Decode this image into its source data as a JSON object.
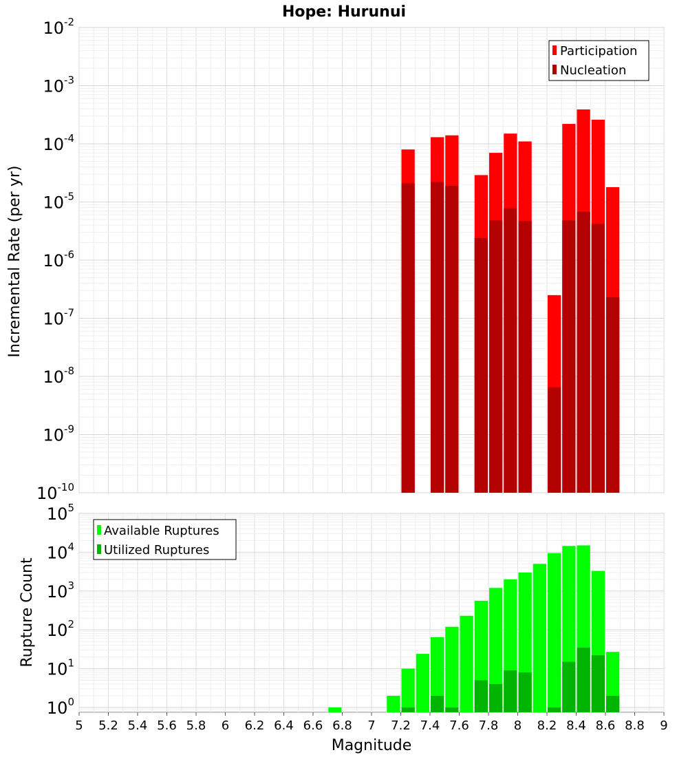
{
  "chart_data": [
    {
      "type": "bar",
      "title": "Hope: Hurunui",
      "ylabel": "Incremental Rate (per yr)",
      "yscale": "log",
      "ylim": [
        1e-10,
        0.01
      ],
      "xlim": [
        5,
        9
      ],
      "legend_position": "top-right",
      "grid": true,
      "series": [
        {
          "name": "Participation",
          "color": "#ff0000",
          "x": [
            7.25,
            7.45,
            7.55,
            7.75,
            7.85,
            7.95,
            8.05,
            8.25,
            8.35,
            8.45,
            8.55,
            8.65
          ],
          "values": [
            8e-05,
            0.00013,
            0.00014,
            2.9e-05,
            7e-05,
            0.00015,
            0.00011,
            2.5e-07,
            0.00022,
            0.00039,
            0.00026,
            1.8e-05
          ]
        },
        {
          "name": "Nucleation",
          "color": "#b30000",
          "x": [
            7.25,
            7.45,
            7.55,
            7.75,
            7.85,
            7.95,
            8.05,
            8.25,
            8.35,
            8.45,
            8.55,
            8.65
          ],
          "values": [
            2.1e-05,
            2.2e-05,
            1.9e-05,
            2.4e-06,
            4.8e-06,
            7.8e-06,
            4.7e-06,
            6.5e-09,
            4.8e-06,
            6.8e-06,
            4.2e-06,
            2.3e-07
          ]
        }
      ]
    },
    {
      "type": "bar",
      "ylabel": "Rupture Count",
      "xlabel": "Magnitude",
      "yscale": "log",
      "ylim": [
        0.75,
        100000.0
      ],
      "xlim": [
        5,
        9
      ],
      "x_ticks": [
        "5",
        "5.2",
        "5.4",
        "5.6",
        "5.8",
        "6",
        "6.2",
        "6.4",
        "6.6",
        "6.8",
        "7",
        "7.2",
        "7.4",
        "7.6",
        "7.8",
        "8",
        "8.2",
        "8.4",
        "8.6",
        "8.8",
        "9"
      ],
      "legend_position": "top-left",
      "grid": true,
      "series": [
        {
          "name": "Available Ruptures",
          "color": "#00ff00",
          "x": [
            6.75,
            7.15,
            7.25,
            7.35,
            7.45,
            7.55,
            7.65,
            7.75,
            7.85,
            7.95,
            8.05,
            8.15,
            8.25,
            8.35,
            8.45,
            8.55,
            8.65
          ],
          "values": [
            1,
            2,
            10,
            24,
            65,
            120,
            230,
            560,
            1200,
            2000,
            3000,
            5000,
            9500,
            14500,
            15000,
            3300,
            27
          ]
        },
        {
          "name": "Utilized Ruptures",
          "color": "#00b300",
          "x": [
            7.25,
            7.45,
            7.55,
            7.75,
            7.85,
            7.95,
            8.05,
            8.25,
            8.35,
            8.45,
            8.55,
            8.65
          ],
          "values": [
            1,
            2,
            1,
            5,
            4,
            9,
            8,
            1,
            15,
            35,
            22,
            2
          ]
        }
      ]
    }
  ]
}
